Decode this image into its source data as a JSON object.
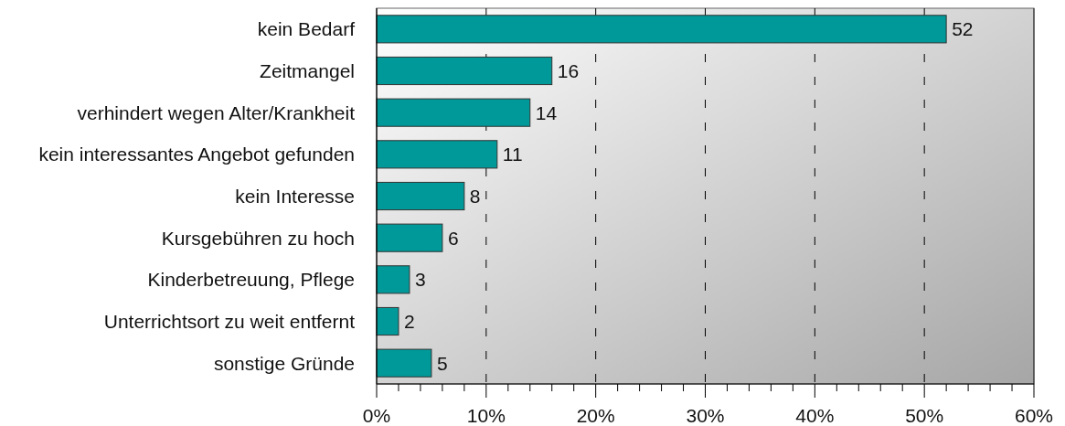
{
  "chart_data": {
    "type": "bar",
    "orientation": "horizontal",
    "categories": [
      "kein Bedarf",
      "Zeitmangel",
      "verhindert wegen Alter/Krankheit",
      "kein interessantes Angebot gefunden",
      "kein Interesse",
      "Kursgebühren zu hoch",
      "Kinderbetreuung, Pflege",
      "Unterrichtsort zu weit entfernt",
      "sonstige Gründe"
    ],
    "values": [
      52,
      16,
      14,
      11,
      8,
      6,
      3,
      2,
      5
    ],
    "color": "#009999",
    "xlim": [
      0,
      60
    ],
    "xticks": [
      {
        "value": 0,
        "label": "0%"
      },
      {
        "value": 2,
        "label": null
      },
      {
        "value": 4,
        "label": null
      },
      {
        "value": 6,
        "label": null
      },
      {
        "value": 8,
        "label": null
      },
      {
        "value": 10,
        "label": "10%"
      },
      {
        "value": 12,
        "label": null
      },
      {
        "value": 14,
        "label": null
      },
      {
        "value": 16,
        "label": null
      },
      {
        "value": 18,
        "label": null
      },
      {
        "value": 20,
        "label": "20%"
      },
      {
        "value": 22,
        "label": null
      },
      {
        "value": 24,
        "label": null
      },
      {
        "value": 26,
        "label": null
      },
      {
        "value": 28,
        "label": null
      },
      {
        "value": 30,
        "label": "30%"
      },
      {
        "value": 32,
        "label": null
      },
      {
        "value": 34,
        "label": null
      },
      {
        "value": 36,
        "label": null
      },
      {
        "value": 38,
        "label": null
      },
      {
        "value": 40,
        "label": "40%"
      },
      {
        "value": 42,
        "label": null
      },
      {
        "value": 44,
        "label": null
      },
      {
        "value": 46,
        "label": null
      },
      {
        "value": 48,
        "label": null
      },
      {
        "value": 50,
        "label": "50%"
      },
      {
        "value": 52,
        "label": null
      },
      {
        "value": 54,
        "label": null
      },
      {
        "value": 56,
        "label": null
      },
      {
        "value": 58,
        "label": null
      },
      {
        "value": 60,
        "label": "60%"
      }
    ],
    "grid": "x",
    "data_labels": true
  }
}
